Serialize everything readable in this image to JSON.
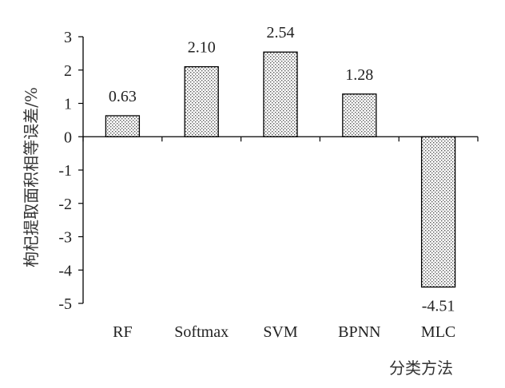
{
  "chart_data": {
    "type": "bar",
    "categories": [
      "RF",
      "Softmax",
      "SVM",
      "BPNN",
      "MLC"
    ],
    "values": [
      0.63,
      2.1,
      2.54,
      1.28,
      -4.51
    ],
    "data_labels": [
      "0.63",
      "2.10",
      "2.54",
      "1.28",
      "-4.51"
    ],
    "xlabel": "分类方法",
    "ylabel": "枸杞提取面积相等误差/%",
    "ylim": [
      -5,
      3
    ],
    "yticks": [
      "3",
      "2",
      "1",
      "0",
      "-1",
      "-2",
      "-3",
      "-4",
      "-5"
    ],
    "grid": false,
    "bar_fill": "dotted hatch pattern",
    "colors": {
      "axis": "#000000",
      "bar_edge": "#000000",
      "hatch": "#555555"
    }
  }
}
